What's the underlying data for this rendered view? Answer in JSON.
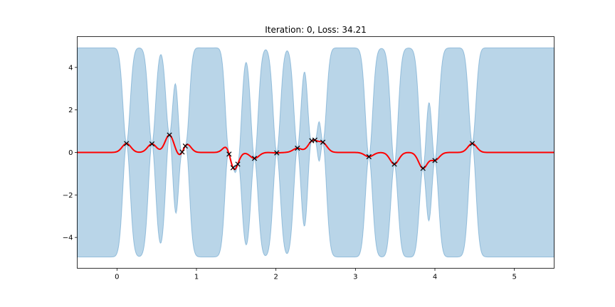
{
  "chart_data": {
    "type": "line",
    "title": "Iteration: 0, Loss: 34.21",
    "xlabel": "",
    "ylabel": "",
    "xlim": [
      -0.5,
      5.5
    ],
    "ylim": [
      -5.45,
      5.45
    ],
    "xticks": [
      0,
      1,
      2,
      3,
      4,
      5
    ],
    "yticks": [
      -4,
      -2,
      0,
      2,
      4
    ],
    "grid": false,
    "colors": {
      "mean_line": "#ff0000",
      "band_fill": "#7fb2d6",
      "band_edge": "#5b9bc8",
      "marker": "#000000"
    },
    "observations": {
      "marker": "x",
      "x": [
        0.12,
        0.44,
        0.66,
        0.82,
        0.86,
        1.41,
        1.46,
        1.52,
        1.73,
        2.01,
        2.27,
        2.45,
        2.49,
        2.59,
        3.17,
        3.49,
        3.85,
        4.0,
        4.47
      ],
      "y": [
        0.42,
        0.4,
        0.82,
        0.02,
        0.3,
        -0.08,
        -0.72,
        -0.55,
        -0.28,
        -0.02,
        0.2,
        0.55,
        0.58,
        0.48,
        -0.2,
        -0.55,
        -0.75,
        -0.38,
        0.42
      ]
    },
    "posterior_mean": {
      "length_scale": 0.055
    },
    "confidence_band": {
      "prior_half_width": 4.9,
      "length_scale": 0.045,
      "noise": 0.02
    }
  }
}
